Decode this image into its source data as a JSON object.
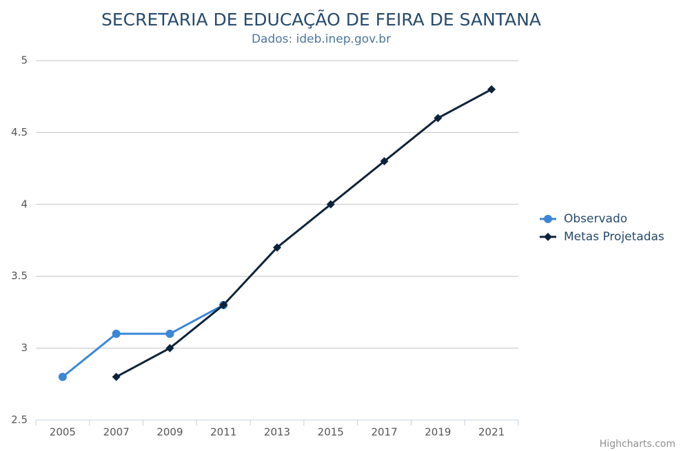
{
  "chart_data": {
    "type": "line",
    "title": "SECRETARIA DE EDUCAÇÃO DE FEIRA DE SANTANA",
    "subtitle": "Dados: ideb.inep.gov.br",
    "credit": "Highcharts.com",
    "categories": [
      "2005",
      "2007",
      "2009",
      "2011",
      "2013",
      "2015",
      "2017",
      "2019",
      "2021"
    ],
    "series": [
      {
        "name": "Observado",
        "color": "#3a87d6",
        "marker": "circle",
        "values": [
          2.8,
          3.1,
          3.1,
          3.3,
          null,
          null,
          null,
          null,
          null
        ]
      },
      {
        "name": "Metas Projetadas",
        "color": "#0d233a",
        "marker": "diamond",
        "values": [
          null,
          2.8,
          3.0,
          3.3,
          3.7,
          4.0,
          4.3,
          4.6,
          4.8
        ]
      }
    ],
    "ylim": [
      2.5,
      5
    ],
    "yticks": [
      2.5,
      3,
      3.5,
      4,
      4.5,
      5
    ],
    "grid": true,
    "legend": "right"
  }
}
